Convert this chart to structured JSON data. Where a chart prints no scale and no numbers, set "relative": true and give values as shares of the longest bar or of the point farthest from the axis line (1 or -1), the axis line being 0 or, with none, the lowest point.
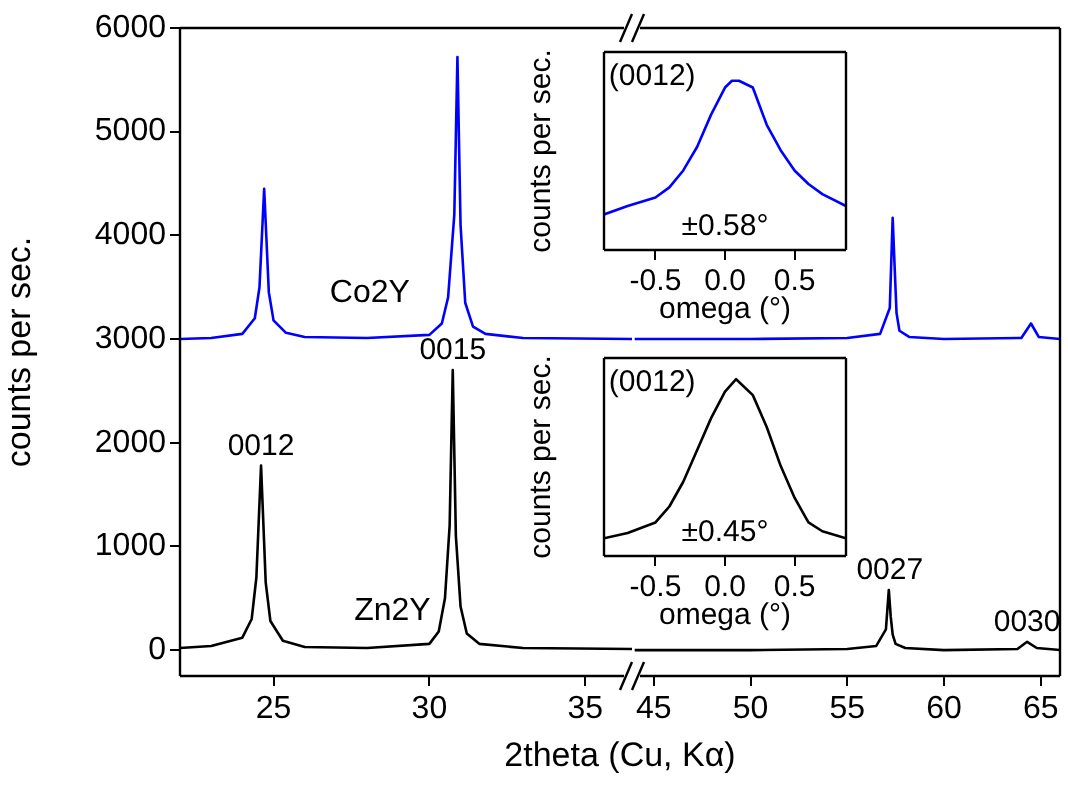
{
  "chart_data": [
    {
      "type": "line",
      "ylabel": "counts per sec.",
      "xlabel": "2theta (Cu, Kα)",
      "xlim": [
        22,
        36.5
      ],
      "xticks": [
        25,
        30,
        35
      ],
      "ylim": [
        -250,
        6000
      ],
      "yticks": [
        0,
        1000,
        2000,
        3000,
        4000,
        5000,
        6000
      ],
      "marker": "none",
      "series": [
        {
          "color": "#000000",
          "x": [
            22,
            23,
            24,
            24.3,
            24.45,
            24.6,
            24.75,
            24.9,
            25.3,
            26,
            28,
            30,
            30.3,
            30.5,
            30.65,
            30.75,
            30.85,
            31,
            31.2,
            31.6,
            33,
            36.5
          ],
          "values": [
            20,
            40,
            120,
            300,
            700,
            1780,
            650,
            280,
            90,
            30,
            20,
            60,
            180,
            500,
            1200,
            2700,
            1100,
            420,
            160,
            60,
            20,
            10
          ]
        },
        {
          "color": "#0000ff",
          "x": [
            22,
            23,
            24,
            24.4,
            24.55,
            24.7,
            24.85,
            25,
            25.4,
            26,
            28,
            30,
            30.4,
            30.6,
            30.8,
            30.9,
            31,
            31.15,
            31.4,
            31.8,
            33,
            36.5
          ],
          "values": [
            3000,
            3010,
            3050,
            3200,
            3500,
            4450,
            3450,
            3180,
            3060,
            3020,
            3010,
            3040,
            3150,
            3400,
            4200,
            5720,
            4100,
            3350,
            3120,
            3050,
            3010,
            3000
          ]
        }
      ],
      "annotations": [
        {
          "text": "0012",
          "x": 24.6,
          "y": 1780
        },
        {
          "text": "0015",
          "x": 30.75,
          "y": 2700
        },
        "Co2Y",
        "Zn2Y"
      ]
    },
    {
      "type": "line",
      "xlim": [
        44,
        66
      ],
      "xticks": [
        45,
        50,
        55,
        60,
        65
      ],
      "ylim": [
        -250,
        6000
      ],
      "tick_labels": "x",
      "marker": "none",
      "series": [
        {
          "color": "#000000",
          "x": [
            44,
            50,
            55,
            56.5,
            57,
            57.15,
            57.25,
            57.35,
            57.5,
            58,
            60,
            63.8,
            64.3,
            64.8,
            66
          ],
          "values": [
            0,
            0,
            10,
            40,
            200,
            580,
            320,
            150,
            60,
            20,
            0,
            10,
            80,
            20,
            0
          ]
        },
        {
          "color": "#0000ff",
          "x": [
            44,
            50,
            55,
            56.7,
            57.2,
            57.35,
            57.45,
            57.55,
            57.7,
            58.2,
            60,
            64,
            64.5,
            64.9,
            66
          ],
          "values": [
            3000,
            3000,
            3010,
            3050,
            3300,
            4170,
            3700,
            3250,
            3080,
            3020,
            3000,
            3010,
            3150,
            3020,
            3000
          ]
        }
      ],
      "annotations": [
        {
          "text": "0027",
          "x": 57.2,
          "y": 580
        },
        {
          "text": "0030",
          "x": 64.3,
          "y": 80
        }
      ]
    },
    {
      "type": "line",
      "relative": true,
      "ylabel": "counts per sec.",
      "xlabel": "omega (°)",
      "xlim": [
        -0.87,
        0.87
      ],
      "xticks": [
        -0.5,
        {
          "value": 0,
          "label": "0.0"
        },
        0.5
      ],
      "marker": "none",
      "series": [
        {
          "color": "#0000ff",
          "x": [
            -0.87,
            -0.7,
            -0.5,
            -0.4,
            -0.3,
            -0.2,
            -0.1,
            0,
            0.05,
            0.1,
            0.2,
            0.3,
            0.4,
            0.5,
            0.6,
            0.7,
            0.87
          ],
          "values": [
            0.21,
            0.26,
            0.31,
            0.37,
            0.47,
            0.61,
            0.8,
            0.96,
            1,
            1,
            0.96,
            0.74,
            0.59,
            0.47,
            0.39,
            0.33,
            0.26
          ]
        }
      ],
      "annotations": [
        "(0012)",
        "±0.58°"
      ]
    },
    {
      "type": "line",
      "relative": true,
      "ylabel": "counts per sec.",
      "xlabel": "omega (°)",
      "xlim": [
        -0.87,
        0.87
      ],
      "xticks": [
        -0.5,
        {
          "value": 0,
          "label": "0.0"
        },
        0.5
      ],
      "marker": "none",
      "series": [
        {
          "color": "#000000",
          "x": [
            -0.87,
            -0.7,
            -0.5,
            -0.4,
            -0.3,
            -0.2,
            -0.1,
            0,
            0.08,
            0.2,
            0.3,
            0.4,
            0.5,
            0.6,
            0.7,
            0.87
          ],
          "values": [
            0.1,
            0.13,
            0.19,
            0.28,
            0.42,
            0.6,
            0.78,
            0.93,
            1,
            0.91,
            0.73,
            0.51,
            0.33,
            0.19,
            0.14,
            0.1
          ]
        }
      ],
      "annotations": [
        "(0012)",
        "±0.45°"
      ]
    }
  ]
}
